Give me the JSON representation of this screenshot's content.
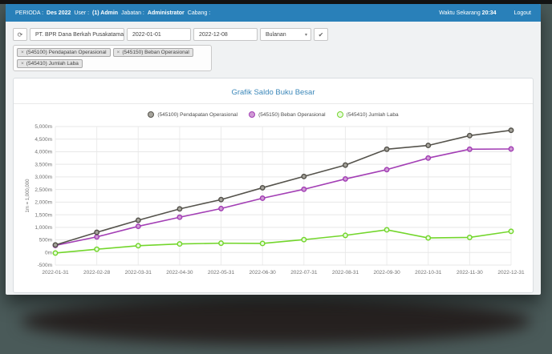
{
  "topbar": {
    "perioda_label": "PERIODA :",
    "perioda_value": "Des 2022",
    "user_label": "User :",
    "user_value": "(1) Admin",
    "jabatan_label": "Jabatan :",
    "jabatan_value": "Administrator",
    "cabang_label": "Cabang :",
    "clock_label": "Waktu Sekarang",
    "clock_value": "20:34",
    "logout_label": "Logout"
  },
  "icons": {
    "refresh": "⟳",
    "apply": "✔",
    "remove": "×",
    "chevron": "▾"
  },
  "toolbar": {
    "company_select_value": "PT. BPR Dana Berkah Pusakatama",
    "date_from": "2022-01-01",
    "date_to": "2022-12-08",
    "period_select_value": "Bulanan"
  },
  "filters": {
    "tags": [
      "(545100) Pendapatan Operasional",
      "(545150) Beban Operasional",
      "(545410) Jumlah Laba"
    ]
  },
  "panel": {
    "title": "Grafik Saldo Buku Besar"
  },
  "colors": {
    "topbar_blue": "#2980b9",
    "title_blue": "#3b87b9",
    "backdrop_teal": "#4a5a59"
  },
  "chart_data": {
    "type": "line",
    "title": "Grafik Saldo Buku Besar",
    "x": [
      "2022-01-31",
      "2022-02-28",
      "2022-03-31",
      "2022-04-30",
      "2022-05-31",
      "2022-06-30",
      "2022-07-31",
      "2022-08-31",
      "2022-09-30",
      "2022-10-31",
      "2022-11-30",
      "2022-12-31"
    ],
    "series": [
      {
        "name": "(545100) Pendapatan Operasional",
        "color": "#55534c",
        "fill": "#a6a49c",
        "values": [
          300,
          800,
          1280,
          1730,
          2100,
          2570,
          3020,
          3470,
          4100,
          4250,
          4640,
          4850
        ]
      },
      {
        "name": "(545150) Beban Operasional",
        "color": "#a33fb5",
        "fill": "#cf9ad4",
        "values": [
          280,
          620,
          1040,
          1400,
          1745,
          2155,
          2510,
          2920,
          3290,
          3750,
          4100,
          4110
        ]
      },
      {
        "name": "(545410) Jumlah Laba",
        "color": "#73d62c",
        "fill": "#eafbe0",
        "values": [
          -20,
          130,
          270,
          340,
          370,
          360,
          510,
          680,
          900,
          580,
          600,
          840
        ]
      }
    ],
    "ylabel": "1m = 1,000,000",
    "unit": "m (millions)",
    "ylim": [
      -500,
      5000
    ],
    "y_tick_step": 500,
    "y_tick_labels": [
      "5,000m",
      "4,500m",
      "4,000m",
      "3,500m",
      "3,000m",
      "2,500m",
      "2,000m",
      "1,500m",
      "1,000m",
      "500m",
      "0m",
      "-500m"
    ],
    "grid": true,
    "legend_position": "top"
  }
}
